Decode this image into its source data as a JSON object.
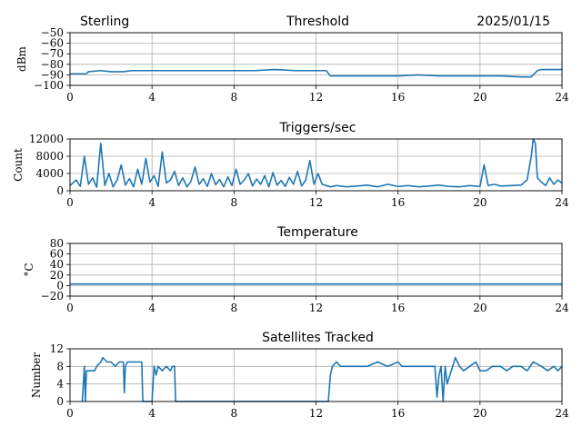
{
  "header": {
    "site": "Sterling",
    "date": "2025/01/15"
  },
  "style": {
    "line_color": "#1f77b4",
    "grid_color": "#b0b0b0"
  },
  "chart_data": [
    {
      "type": "line",
      "title": "Threshold",
      "ylabel": "dBm",
      "xlim": [
        0,
        24
      ],
      "ylim": [
        -100,
        -50
      ],
      "xticks": [
        0,
        4,
        8,
        12,
        16,
        20,
        24
      ],
      "yticks": [
        -100,
        -90,
        -80,
        -70,
        -60,
        -50
      ],
      "grid": true,
      "series": [
        {
          "x": [
            0,
            0.8,
            0.9,
            1.5,
            2.0,
            2.6,
            3.0,
            4.0,
            5.0,
            6.0,
            7.0,
            8.0,
            9.0,
            10.0,
            11.0,
            12.0,
            12.5,
            12.7,
            13.5,
            15.0,
            16.0,
            17.0,
            18.0,
            19.0,
            20.0,
            21.0,
            22.0,
            22.5,
            22.8,
            23.0,
            23.5,
            24.0
          ],
          "values": [
            -89,
            -89,
            -87,
            -86,
            -87,
            -87,
            -86,
            -86,
            -86,
            -86,
            -86,
            -86,
            -86,
            -85,
            -86,
            -86,
            -86,
            -91,
            -91,
            -91,
            -91,
            -90,
            -91,
            -91,
            -91,
            -91,
            -92,
            -92,
            -86,
            -85,
            -85,
            -85
          ]
        }
      ]
    },
    {
      "type": "line",
      "title": "Triggers/sec",
      "ylabel": "Count",
      "xlim": [
        0,
        24
      ],
      "ylim": [
        0,
        12000
      ],
      "xticks": [
        0,
        4,
        8,
        12,
        16,
        20,
        24
      ],
      "yticks": [
        0,
        4000,
        8000,
        12000
      ],
      "grid": true,
      "series": [
        {
          "x": [
            0,
            0.3,
            0.5,
            0.7,
            0.9,
            1.1,
            1.3,
            1.5,
            1.7,
            1.9,
            2.1,
            2.3,
            2.5,
            2.7,
            2.9,
            3.1,
            3.3,
            3.5,
            3.7,
            3.9,
            4.1,
            4.3,
            4.5,
            4.7,
            4.9,
            5.1,
            5.3,
            5.5,
            5.7,
            5.9,
            6.1,
            6.3,
            6.5,
            6.7,
            6.9,
            7.1,
            7.3,
            7.5,
            7.7,
            7.9,
            8.1,
            8.3,
            8.5,
            8.7,
            8.9,
            9.1,
            9.3,
            9.5,
            9.7,
            9.9,
            10.1,
            10.3,
            10.5,
            10.7,
            10.9,
            11.1,
            11.3,
            11.5,
            11.7,
            11.9,
            12.1,
            12.3,
            12.5,
            12.7,
            13.0,
            13.5,
            14.0,
            14.5,
            15.0,
            15.5,
            16.0,
            16.5,
            17.0,
            17.5,
            18.0,
            18.5,
            19.0,
            19.5,
            20.0,
            20.2,
            20.4,
            20.7,
            21.0,
            21.5,
            22.0,
            22.3,
            22.5,
            22.6,
            22.7,
            22.8,
            23.0,
            23.2,
            23.4,
            23.6,
            23.8,
            24.0
          ],
          "values": [
            1200,
            2500,
            1000,
            8000,
            1500,
            3000,
            800,
            11000,
            1200,
            4000,
            900,
            2500,
            6000,
            1300,
            2800,
            900,
            5000,
            1500,
            7500,
            2000,
            3500,
            1000,
            9000,
            1800,
            2500,
            4500,
            1200,
            3000,
            900,
            2200,
            5500,
            1500,
            2800,
            1000,
            4000,
            1400,
            2600,
            900,
            3200,
            1200,
            5000,
            1500,
            2500,
            4000,
            1100,
            2700,
            1500,
            3500,
            900,
            4200,
            1300,
            2400,
            1000,
            3100,
            1500,
            4500,
            1100,
            2500,
            7000,
            1500,
            4000,
            1500,
            1200,
            900,
            1200,
            900,
            1100,
            1300,
            900,
            1500,
            1000,
            1200,
            900,
            1100,
            1300,
            1000,
            900,
            1200,
            1000,
            6000,
            1200,
            1500,
            1100,
            1200,
            1300,
            2500,
            8000,
            12000,
            11000,
            3000,
            2000,
            1200,
            3000,
            1500,
            2500,
            1800
          ]
        }
      ]
    },
    {
      "type": "line",
      "title": "Temperature",
      "ylabel": "°C",
      "xlim": [
        0,
        24
      ],
      "ylim": [
        -20,
        80
      ],
      "xticks": [
        0,
        4,
        8,
        12,
        16,
        20,
        24
      ],
      "yticks": [
        -20,
        0,
        20,
        40,
        60,
        80
      ],
      "grid": true,
      "series": [
        {
          "x": [
            0,
            24
          ],
          "values": [
            3,
            3
          ]
        }
      ]
    },
    {
      "type": "line",
      "title": "Satellites Tracked",
      "ylabel": "Number",
      "xlim": [
        0,
        24
      ],
      "ylim": [
        0,
        12
      ],
      "xticks": [
        0,
        4,
        8,
        12,
        16,
        20,
        24
      ],
      "yticks": [
        0,
        4,
        8,
        12
      ],
      "grid": true,
      "series": [
        {
          "x": [
            0.6,
            0.7,
            0.75,
            0.8,
            1.2,
            1.3,
            1.5,
            1.6,
            1.8,
            2.0,
            2.2,
            2.4,
            2.6,
            2.65,
            2.7,
            2.8,
            3.0,
            3.2,
            3.4,
            3.5,
            3.55,
            3.6,
            4.0,
            4.1,
            4.2,
            4.3,
            4.5,
            4.7,
            4.9,
            5.0,
            5.1,
            5.15,
            5.2,
            6.0,
            8.0,
            10.0,
            12.0,
            12.6,
            12.65,
            12.7,
            12.8,
            13.0,
            13.2,
            13.5,
            14.0,
            14.5,
            15.0,
            15.5,
            16.0,
            16.2,
            16.5,
            17.0,
            17.5,
            17.8,
            17.9,
            18.0,
            18.1,
            18.2,
            18.3,
            18.4,
            18.6,
            18.8,
            19.0,
            19.2,
            19.5,
            19.8,
            20.0,
            20.3,
            20.6,
            21.0,
            21.3,
            21.6,
            22.0,
            22.3,
            22.6,
            23.0,
            23.3,
            23.6,
            23.8,
            24.0
          ],
          "values": [
            0,
            8,
            0,
            7,
            7,
            8,
            9,
            10,
            9,
            9,
            8,
            9,
            9,
            2,
            8,
            9,
            9,
            9,
            9,
            9,
            0,
            0,
            0,
            8,
            6,
            8,
            7,
            8,
            7,
            8,
            8,
            0,
            0,
            0,
            0,
            0,
            0,
            0,
            3,
            6,
            8,
            9,
            8,
            8,
            8,
            8,
            9,
            8,
            9,
            8,
            8,
            8,
            8,
            8,
            1,
            6,
            8,
            0,
            8,
            4,
            7,
            10,
            8,
            7,
            8,
            9,
            7,
            7,
            8,
            8,
            7,
            8,
            8,
            7,
            9,
            8,
            7,
            8,
            7,
            8
          ]
        }
      ]
    }
  ]
}
